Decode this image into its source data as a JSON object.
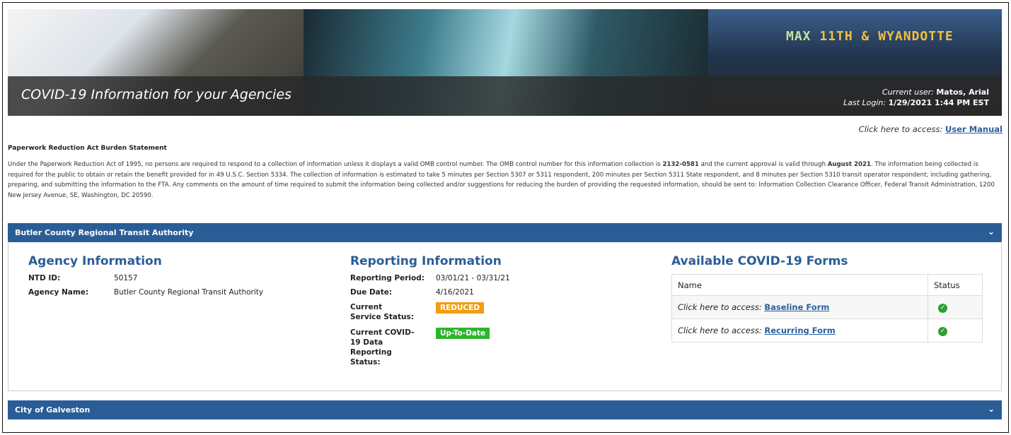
{
  "banner": {
    "title": "COVID-19 Information for your Agencies",
    "sign_text": "MAX",
    "sign_route": "11TH & WYANDOTTE",
    "current_user_label": "Current user:",
    "current_user": "Matos, Arial",
    "last_login_label": "Last Login:",
    "last_login": "1/29/2021 1:44 PM EST"
  },
  "manual": {
    "prefix": "Click here to access:",
    "link": "User Manual"
  },
  "pra": {
    "heading": "Paperwork Reduction Act Burden Statement",
    "p1": "Under the Paperwork Reduction Act of 1995, no persons are required to respond to a collection of information unless it displays a valid OMB control number. The OMB control number for this information collection is ",
    "omb": "2132-0581",
    "p2": " and the current approval is valid through ",
    "valid": "August 2021",
    "p3": ". The information being collected is required for the public to obtain or retain the benefit provided for in 49 U.S.C. Section 5334. The collection of information is estimated to take 5 minutes per Section 5307 or 5311 respondent, 200 minutes per Section 5311 State respondent, and 8 minutes per Section 5310 transit operator respondent; including gathering, preparing, and submitting the information to the FTA. Any comments on the amount of time required to submit the information being collected and/or suggestions for reducing the burden of providing the requested information, should be sent to: Information Collection Clearance Officer, Federal Transit Administration, 1200 New Jersey Avenue, SE, Washington, DC 20590."
  },
  "panels": [
    {
      "title": "Butler County Regional Transit Authority",
      "agency": {
        "heading": "Agency Information",
        "ntd_label": "NTD ID:",
        "ntd": "50157",
        "name_label": "Agency Name:",
        "name": "Butler County Regional Transit Authority"
      },
      "reporting": {
        "heading": "Reporting Information",
        "period_label": "Reporting Period:",
        "period": "03/01/21 - 03/31/21",
        "due_label": "Due Date:",
        "due": "4/16/2021",
        "service_label": "Current Service Status:",
        "service": "REDUCED",
        "service_color": "#f39c12",
        "data_label": "Current COVID-19 Data Reporting Status:",
        "data": "Up-To-Date",
        "data_color": "#2db52d"
      },
      "forms": {
        "heading": "Available COVID-19 Forms",
        "col_name": "Name",
        "col_status": "Status",
        "rows": [
          {
            "prefix": "Click here to access:",
            "link": "Baseline Form",
            "status": "complete"
          },
          {
            "prefix": "Click here to access:",
            "link": "Recurring Form",
            "status": "complete"
          }
        ]
      }
    },
    {
      "title": "City of Galveston"
    }
  ]
}
